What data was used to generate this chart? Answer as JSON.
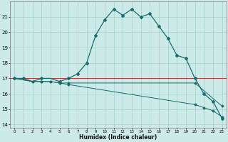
{
  "xlabel": "Humidex (Indice chaleur)",
  "background_color": "#cceae8",
  "grid_color": "#aad4d0",
  "line_color": "#1a6b6b",
  "red_line_color": "#cc3333",
  "xlim": [
    -0.5,
    23.5
  ],
  "ylim": [
    13.8,
    22.0
  ],
  "yticks": [
    14,
    15,
    16,
    17,
    18,
    19,
    20,
    21
  ],
  "xticks": [
    0,
    1,
    2,
    3,
    4,
    5,
    6,
    7,
    8,
    9,
    10,
    11,
    12,
    13,
    14,
    15,
    16,
    17,
    18,
    19,
    20,
    21,
    22,
    23
  ],
  "curve1_x": [
    0,
    1,
    2,
    3,
    4,
    5,
    6,
    7,
    8,
    9,
    10,
    11,
    12,
    13,
    14,
    15,
    16,
    17,
    18,
    19,
    20,
    21,
    22,
    23
  ],
  "curve1_y": [
    17.0,
    17.0,
    16.8,
    17.0,
    17.0,
    16.8,
    17.0,
    17.3,
    18.0,
    19.8,
    20.8,
    21.5,
    21.1,
    21.5,
    21.0,
    21.2,
    20.4,
    19.6,
    18.5,
    18.3,
    17.0,
    16.0,
    15.5,
    14.4
  ],
  "curve1_marker_x": [
    0,
    1,
    3,
    5,
    6,
    7,
    8,
    9,
    10,
    11,
    12,
    13,
    14,
    15,
    16,
    17,
    18,
    19,
    20,
    21,
    22,
    23
  ],
  "curve1_marker_y": [
    17.0,
    17.0,
    17.0,
    16.8,
    17.0,
    17.3,
    18.0,
    19.8,
    20.8,
    21.5,
    21.1,
    21.5,
    21.0,
    21.2,
    20.4,
    19.6,
    18.5,
    18.3,
    17.0,
    16.0,
    15.5,
    14.4
  ],
  "curve2_x": [
    0,
    2,
    3,
    4,
    5,
    6,
    20,
    23
  ],
  "curve2_y": [
    17.0,
    16.8,
    16.8,
    16.8,
    16.7,
    16.7,
    16.7,
    15.2
  ],
  "curve3_x": [
    0,
    2,
    3,
    4,
    5,
    6,
    20,
    21,
    22,
    23
  ],
  "curve3_y": [
    17.0,
    16.8,
    16.8,
    16.8,
    16.7,
    16.6,
    15.3,
    15.1,
    14.9,
    14.5
  ],
  "red_line_y": 17.0
}
